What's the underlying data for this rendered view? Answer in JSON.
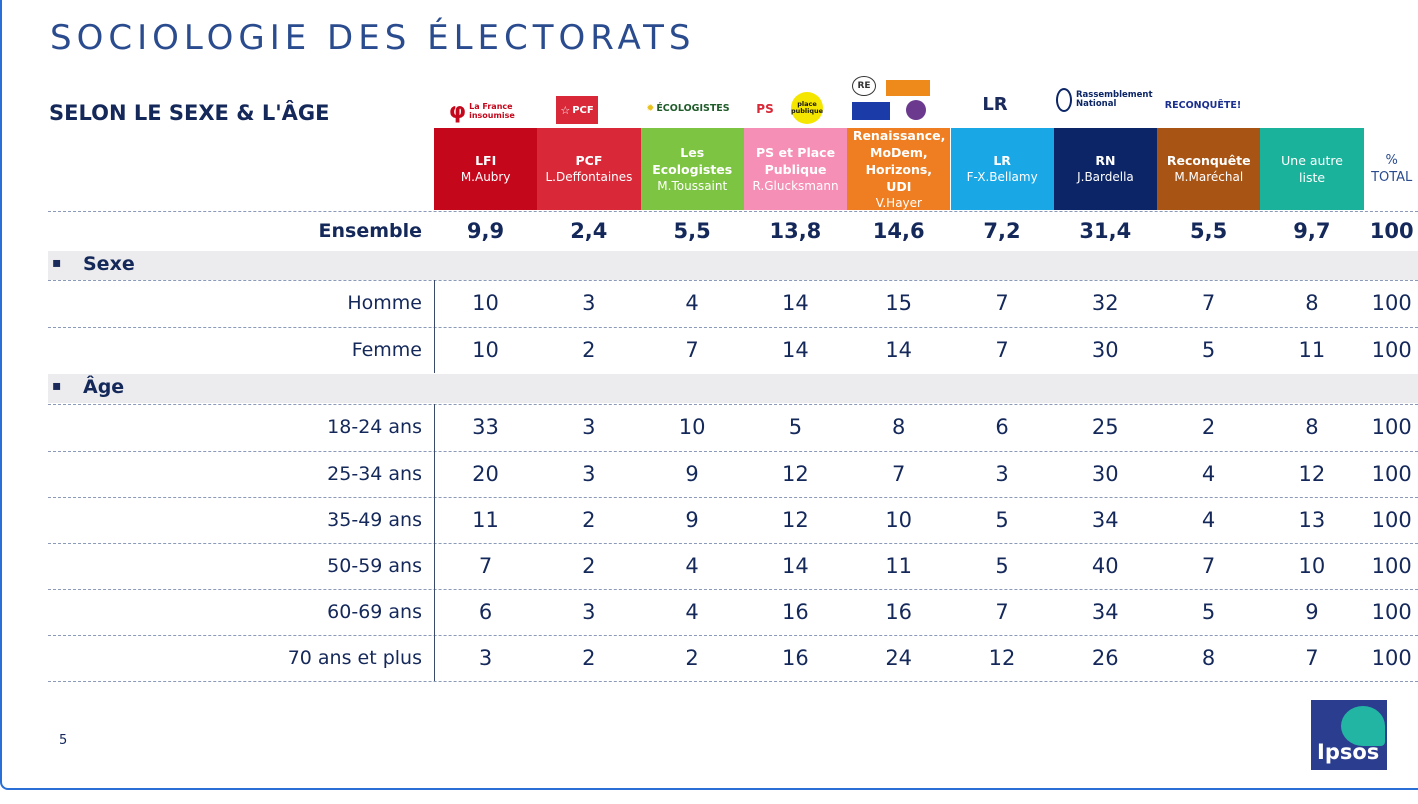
{
  "title": "SOCIOLOGIE DES ÉLECTORATS",
  "subtitle": "SELON LE SEXE & L'ÂGE",
  "page_number": "5",
  "brand": "Ipsos",
  "logos": {
    "lfi": "La France insoumise",
    "pcf": "PCF",
    "eco": "ÉCOLOGISTES",
    "ps": "PS",
    "pp": "place publique",
    "re": "RE",
    "lr": "LR",
    "rn": "Rassemblement National",
    "rec": "RECONQUÊTE!"
  },
  "chart_data": {
    "type": "table",
    "columns": [
      {
        "party": "LFI",
        "candidate": "M.Aubry",
        "color": "#c5071b"
      },
      {
        "party": "PCF",
        "candidate": "L.Deffontaines",
        "color": "#d92838"
      },
      {
        "party": "Les Ecologistes",
        "candidate": "M.Toussaint",
        "color": "#7dc443"
      },
      {
        "party": "PS et Place Publique",
        "candidate": "R.Glucksmann",
        "color": "#f68fb5"
      },
      {
        "party": "Renaissance, MoDem, Horizons, UDI",
        "candidate": "V.Hayer",
        "color": "#ee7e21"
      },
      {
        "party": "LR",
        "candidate": "F-X.Bellamy",
        "color": "#1aa7e6"
      },
      {
        "party": "RN",
        "candidate": "J.Bardella",
        "color": "#0b2566"
      },
      {
        "party": "Reconquête",
        "candidate": "M.Maréchal",
        "color": "#a85414"
      },
      {
        "party": "Une autre liste",
        "candidate": "",
        "color": "#1ab29b"
      }
    ],
    "total_header": [
      "%",
      "TOTAL"
    ],
    "ensemble": {
      "label": "Ensemble",
      "values": [
        "9,9",
        "2,4",
        "5,5",
        "13,8",
        "14,6",
        "7,2",
        "31,4",
        "5,5",
        "9,7"
      ],
      "total": "100"
    },
    "sections": [
      {
        "title": "Sexe",
        "rows": [
          {
            "label": "Homme",
            "values": [
              10,
              3,
              4,
              14,
              15,
              7,
              32,
              7,
              8
            ],
            "total": 100
          },
          {
            "label": "Femme",
            "values": [
              10,
              2,
              7,
              14,
              14,
              7,
              30,
              5,
              11
            ],
            "total": 100
          }
        ]
      },
      {
        "title": "Âge",
        "rows": [
          {
            "label": "18-24 ans",
            "values": [
              33,
              3,
              10,
              5,
              8,
              6,
              25,
              2,
              8
            ],
            "total": 100
          },
          {
            "label": "25-34 ans",
            "values": [
              20,
              3,
              9,
              12,
              7,
              3,
              30,
              4,
              12
            ],
            "total": 100
          },
          {
            "label": "35-49 ans",
            "values": [
              11,
              2,
              9,
              12,
              10,
              5,
              34,
              4,
              13
            ],
            "total": 100
          },
          {
            "label": "50-59 ans",
            "values": [
              7,
              2,
              4,
              14,
              11,
              5,
              40,
              7,
              10
            ],
            "total": 100
          },
          {
            "label": "60-69 ans",
            "values": [
              6,
              3,
              4,
              16,
              16,
              7,
              34,
              5,
              9
            ],
            "total": 100
          },
          {
            "label": "70 ans et plus",
            "values": [
              3,
              2,
              2,
              16,
              24,
              12,
              26,
              8,
              7
            ],
            "total": 100
          }
        ]
      }
    ]
  }
}
